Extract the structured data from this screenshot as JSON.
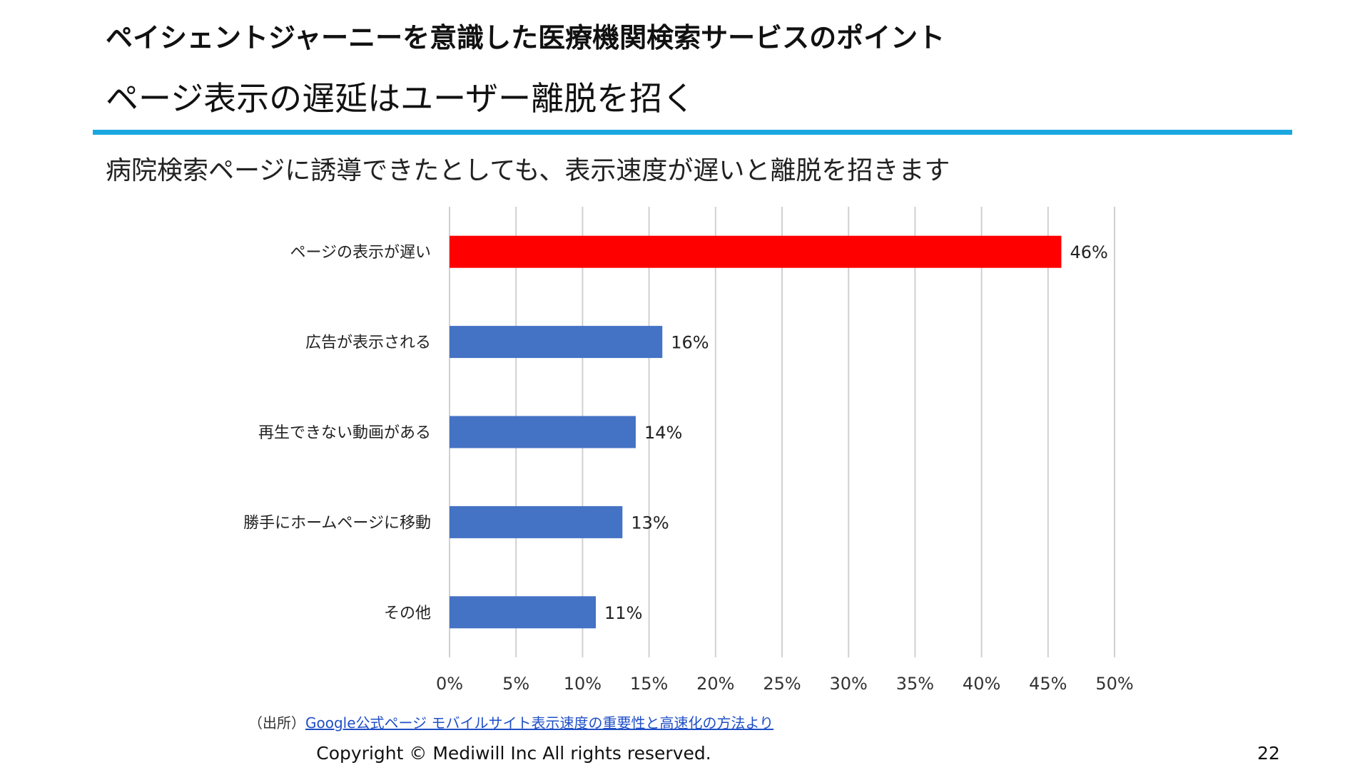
{
  "header": {
    "title": "ペイシェントジャーニーを意識した医療機関検索サービスのポイント",
    "subtitle": "ページ表示の遅延はユーザー離脱を招く",
    "accent_color": "#1aa7e0"
  },
  "lead_text": "病院検索ページに誘導できたとしても、表示速度が遅いと離脱を招きます",
  "chart_data": {
    "type": "bar",
    "orientation": "horizontal",
    "categories": [
      "ページの表示が遅い",
      "広告が表示される",
      "再生できない動画がある",
      "勝手にホームページに移動",
      "その他"
    ],
    "values": [
      46,
      16,
      14,
      13,
      11
    ],
    "value_labels": [
      "46%",
      "16%",
      "14%",
      "13%",
      "11%"
    ],
    "colors": [
      "#ff0000",
      "#4472c4",
      "#4472c4",
      "#4472c4",
      "#4472c4"
    ],
    "xlim": [
      0,
      50
    ],
    "x_ticks": [
      0,
      5,
      10,
      15,
      20,
      25,
      30,
      35,
      40,
      45,
      50
    ],
    "x_tick_labels": [
      "0%",
      "5%",
      "10%",
      "15%",
      "20%",
      "25%",
      "30%",
      "35%",
      "40%",
      "45%",
      "50%"
    ],
    "grid": true,
    "legend": "none",
    "title": "",
    "xlabel": "",
    "ylabel": ""
  },
  "source": {
    "prefix": "（出所）",
    "link_text": "Google公式ページ モバイルサイト表示速度の重要性と高速化の方法より"
  },
  "footer": {
    "copyright": "Copyright © Mediwill Inc All rights reserved.",
    "page_number": "22"
  }
}
